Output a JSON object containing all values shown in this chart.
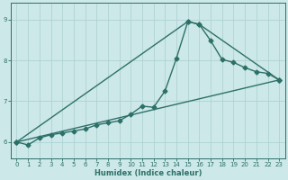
{
  "xlabel": "Humidex (Indice chaleur)",
  "xlim": [
    -0.5,
    23.5
  ],
  "ylim": [
    5.6,
    9.4
  ],
  "xticks": [
    0,
    1,
    2,
    3,
    4,
    5,
    6,
    7,
    8,
    9,
    10,
    11,
    12,
    13,
    14,
    15,
    16,
    17,
    18,
    19,
    20,
    21,
    22,
    23
  ],
  "yticks": [
    6,
    7,
    8,
    9
  ],
  "bg_color": "#cce8e8",
  "line_color": "#2d7068",
  "grid_color": "#aacfcf",
  "line1_x": [
    0,
    1,
    2,
    3,
    4,
    5,
    6,
    7,
    8,
    9,
    10,
    11,
    12,
    13,
    14,
    15,
    16,
    17,
    18,
    19,
    20,
    21,
    22,
    23
  ],
  "line1_y": [
    6.0,
    5.93,
    6.1,
    6.18,
    6.22,
    6.27,
    6.32,
    6.42,
    6.47,
    6.52,
    6.68,
    6.88,
    6.85,
    7.25,
    8.05,
    8.95,
    8.88,
    8.48,
    8.02,
    7.95,
    7.82,
    7.72,
    7.68,
    7.52
  ],
  "line2_x": [
    0,
    15,
    16,
    23
  ],
  "line2_y": [
    6.0,
    8.95,
    8.88,
    7.52
  ],
  "line3_x": [
    0,
    23
  ],
  "line3_y": [
    6.0,
    7.52
  ],
  "marker_size": 2.5,
  "line_width": 1.0
}
